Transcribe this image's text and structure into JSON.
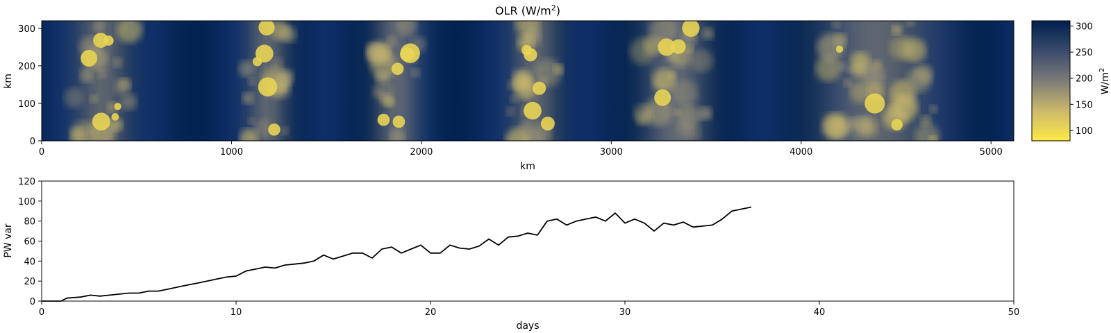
{
  "chart_data": [
    {
      "type": "heatmap",
      "title": "OLR (W/m",
      "title_superscript": "2",
      "title_suffix": ")",
      "xlabel": "km",
      "ylabel": "km",
      "xlim": [
        0,
        5120
      ],
      "ylim": [
        0,
        320
      ],
      "xticks": [
        "0",
        "1000",
        "2000",
        "3000",
        "4000",
        "5000"
      ],
      "yticks": [
        "0",
        "100",
        "200",
        "300"
      ],
      "colormap": "cividis (reversed)",
      "colors": {
        "low": "#ffe945",
        "mid": "#7c7b78",
        "high": "#00204d"
      },
      "colorbar": {
        "label": "W/m",
        "label_superscript": "2",
        "range": [
          80,
          310
        ],
        "ticks": [
          "100",
          "150",
          "200",
          "250",
          "300"
        ]
      },
      "convective_bands_km": [
        {
          "center": 320,
          "half_width": 170
        },
        {
          "center": 1190,
          "half_width": 130
        },
        {
          "center": 1870,
          "half_width": 140
        },
        {
          "center": 2600,
          "half_width": 150
        },
        {
          "center": 3340,
          "half_width": 200
        },
        {
          "center": 4400,
          "half_width": 340
        }
      ]
    },
    {
      "type": "line",
      "title": "",
      "xlabel": "days",
      "ylabel": "PW var",
      "xlim": [
        0,
        50
      ],
      "ylim": [
        0,
        120
      ],
      "xticks": [
        "0",
        "10",
        "20",
        "30",
        "40",
        "50"
      ],
      "yticks": [
        "0",
        "20",
        "40",
        "60",
        "80",
        "100",
        "120"
      ],
      "line_color": "#000000",
      "series": [
        {
          "x": [
            0,
            1,
            1.3,
            2,
            2.5,
            3,
            3.5,
            4,
            4.5,
            5,
            5.5,
            6,
            6.5,
            7,
            7.5,
            8,
            8.5,
            9,
            9.5,
            10,
            10.5,
            11,
            11.5,
            12,
            12.5,
            13,
            13.5,
            14,
            14.5,
            15,
            15.5,
            16,
            16.5,
            17,
            17.5,
            18,
            18.5,
            19,
            19.5,
            20,
            20.5,
            21,
            21.5,
            22,
            22.5,
            23,
            23.5,
            24,
            24.5,
            25,
            25.5,
            26,
            26.5,
            27,
            27.5,
            28,
            28.5,
            29,
            29.5,
            30,
            30.5,
            31,
            31.5,
            32,
            32.5,
            33,
            33.5,
            34,
            34.5,
            35,
            35.5,
            36,
            36.5
          ],
          "y": [
            0,
            0,
            3,
            4,
            6,
            5,
            6,
            7,
            8,
            8,
            10,
            10,
            12,
            14,
            16,
            18,
            20,
            22,
            24,
            25,
            30,
            32,
            34,
            33,
            36,
            37,
            38,
            40,
            46,
            42,
            45,
            48,
            48,
            43,
            52,
            54,
            48,
            52,
            56,
            48,
            48,
            56,
            53,
            52,
            55,
            62,
            56,
            64,
            65,
            68,
            66,
            80,
            82,
            76,
            80,
            82,
            84,
            80,
            88,
            78,
            82,
            78,
            70,
            78,
            76,
            79,
            74,
            75,
            76,
            82,
            90,
            92,
            94
          ]
        }
      ]
    }
  ]
}
